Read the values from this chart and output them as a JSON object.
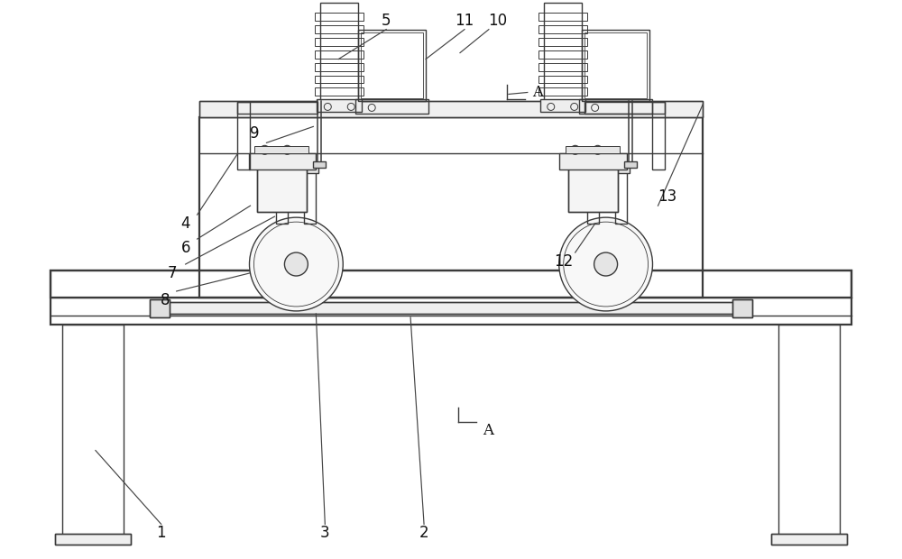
{
  "bg_color": "#ffffff",
  "lc": "#3a3a3a",
  "lw": 1.0,
  "tlw": 1.6,
  "fig_w": 10.0,
  "fig_h": 6.2,
  "xmin": 0,
  "xmax": 10,
  "ymin": 0,
  "ymax": 6.2
}
